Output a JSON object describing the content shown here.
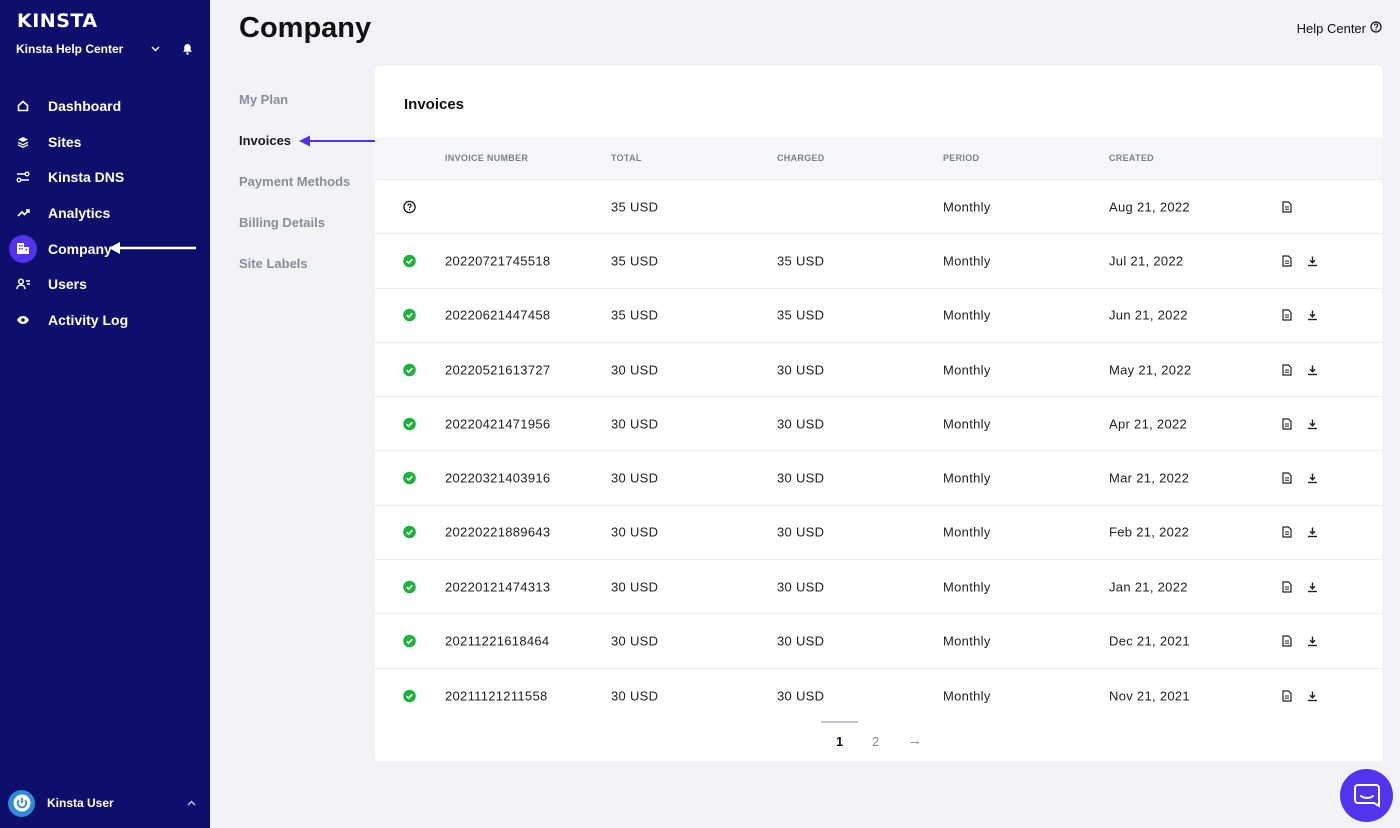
{
  "brand": {
    "logo_text": "KINSTA"
  },
  "company_switcher": {
    "name": "Kinsta Help Center"
  },
  "sidebar": {
    "items": [
      {
        "label": "Dashboard",
        "icon": "home-icon"
      },
      {
        "label": "Sites",
        "icon": "layers-icon"
      },
      {
        "label": "Kinsta DNS",
        "icon": "dns-icon"
      },
      {
        "label": "Analytics",
        "icon": "trend-icon"
      },
      {
        "label": "Company",
        "icon": "building-icon",
        "active": true
      },
      {
        "label": "Users",
        "icon": "users-icon"
      },
      {
        "label": "Activity Log",
        "icon": "eye-icon"
      }
    ]
  },
  "user": {
    "name": "Kinsta User"
  },
  "header": {
    "title": "Company",
    "help_label": "Help Center"
  },
  "subnav": {
    "items": [
      {
        "label": "My Plan"
      },
      {
        "label": "Invoices",
        "active": true
      },
      {
        "label": "Payment Methods"
      },
      {
        "label": "Billing Details"
      },
      {
        "label": "Site Labels"
      }
    ]
  },
  "invoices": {
    "title": "Invoices",
    "columns": [
      "INVOICE NUMBER",
      "TOTAL",
      "CHARGED",
      "PERIOD",
      "CREATED"
    ],
    "rows": [
      {
        "status": "pending",
        "number": "",
        "total": "35 USD",
        "charged": "",
        "period": "Monthly",
        "created": "Aug 21, 2022",
        "downloadable": false
      },
      {
        "status": "paid",
        "number": "20220721745518",
        "total": "35 USD",
        "charged": "35 USD",
        "period": "Monthly",
        "created": "Jul 21, 2022",
        "downloadable": true
      },
      {
        "status": "paid",
        "number": "20220621447458",
        "total": "35 USD",
        "charged": "35 USD",
        "period": "Monthly",
        "created": "Jun 21, 2022",
        "downloadable": true
      },
      {
        "status": "paid",
        "number": "20220521613727",
        "total": "30 USD",
        "charged": "30 USD",
        "period": "Monthly",
        "created": "May 21, 2022",
        "downloadable": true
      },
      {
        "status": "paid",
        "number": "20220421471956",
        "total": "30 USD",
        "charged": "30 USD",
        "period": "Monthly",
        "created": "Apr 21, 2022",
        "downloadable": true
      },
      {
        "status": "paid",
        "number": "20220321403916",
        "total": "30 USD",
        "charged": "30 USD",
        "period": "Monthly",
        "created": "Mar 21, 2022",
        "downloadable": true
      },
      {
        "status": "paid",
        "number": "20220221889643",
        "total": "30 USD",
        "charged": "30 USD",
        "period": "Monthly",
        "created": "Feb 21, 2022",
        "downloadable": true
      },
      {
        "status": "paid",
        "number": "20220121474313",
        "total": "30 USD",
        "charged": "30 USD",
        "period": "Monthly",
        "created": "Jan 21, 2022",
        "downloadable": true
      },
      {
        "status": "paid",
        "number": "20211221618464",
        "total": "30 USD",
        "charged": "30 USD",
        "period": "Monthly",
        "created": "Dec 21, 2021",
        "downloadable": true
      },
      {
        "status": "paid",
        "number": "20211121211558",
        "total": "30 USD",
        "charged": "30 USD",
        "period": "Monthly",
        "created": "Nov 21, 2021",
        "downloadable": true
      }
    ]
  },
  "pagination": {
    "pages": [
      "1",
      "2"
    ],
    "current": "1",
    "next_glyph": "→"
  },
  "colors": {
    "sidebar_bg": "#0e0f6c",
    "accent": "#5333ed",
    "success": "#1fb23a"
  }
}
